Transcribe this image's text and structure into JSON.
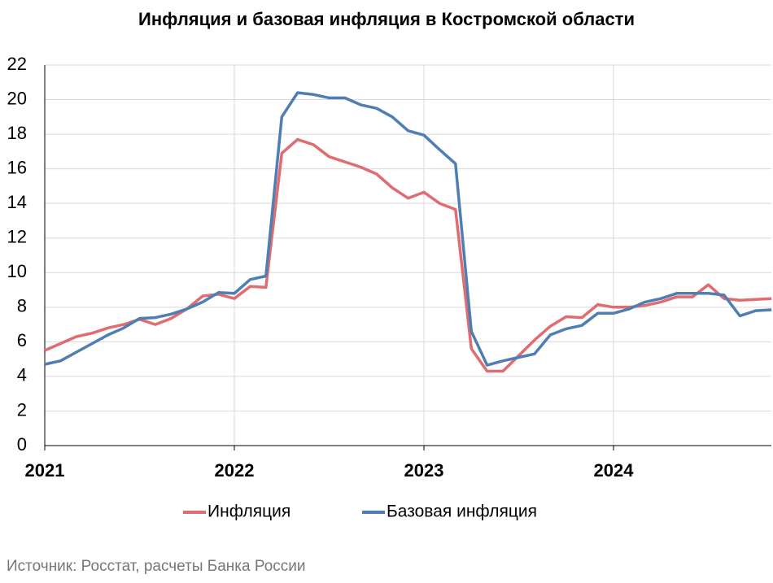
{
  "chart_data": {
    "type": "line",
    "title": "Инфляция и базовая инфляция в Костромской области",
    "source": "Источник: Росстат, расчеты Банка России",
    "categories": [
      "2021",
      null,
      null,
      null,
      null,
      null,
      null,
      null,
      null,
      null,
      null,
      null,
      "2022",
      null,
      null,
      null,
      null,
      null,
      null,
      null,
      null,
      null,
      null,
      null,
      "2023",
      null,
      null,
      null,
      null,
      null,
      null,
      null,
      null,
      null,
      null,
      null,
      "2024",
      null,
      null,
      null,
      null,
      null,
      null,
      null,
      null,
      null,
      null
    ],
    "series": [
      {
        "name": "Инфляция",
        "color": "#e06c70",
        "values": [
          5.5,
          5.9,
          6.3,
          6.5,
          6.8,
          7.0,
          7.3,
          7.0,
          7.35,
          7.9,
          8.65,
          8.75,
          8.5,
          9.2,
          9.15,
          16.9,
          17.7,
          17.4,
          16.7,
          16.4,
          16.1,
          15.7,
          14.9,
          14.3,
          14.65,
          14.0,
          13.65,
          5.6,
          4.3,
          4.3,
          5.2,
          6.1,
          6.9,
          7.45,
          7.4,
          8.15,
          8.0,
          8.0,
          8.1,
          8.3,
          8.6,
          8.6,
          9.3,
          8.5,
          8.4,
          8.45,
          8.5
        ]
      },
      {
        "name": "Базовая инфляция",
        "color": "#4f7eb3",
        "values": [
          4.7,
          4.9,
          5.4,
          5.9,
          6.4,
          6.8,
          7.35,
          7.4,
          7.6,
          7.9,
          8.3,
          8.85,
          8.8,
          9.6,
          9.8,
          19.0,
          20.4,
          20.3,
          20.1,
          20.1,
          19.7,
          19.5,
          19.0,
          18.2,
          17.95,
          17.1,
          16.3,
          6.6,
          4.65,
          4.9,
          5.1,
          5.3,
          6.4,
          6.75,
          6.95,
          7.65,
          7.65,
          7.9,
          8.3,
          8.5,
          8.8,
          8.8,
          8.8,
          8.7,
          7.5,
          7.8,
          7.85
        ]
      }
    ],
    "ylim": [
      0,
      22
    ],
    "yticks": [
      0,
      2,
      4,
      6,
      8,
      10,
      12,
      14,
      16,
      18,
      20,
      22
    ],
    "grid": true,
    "legend": "bottom"
  }
}
